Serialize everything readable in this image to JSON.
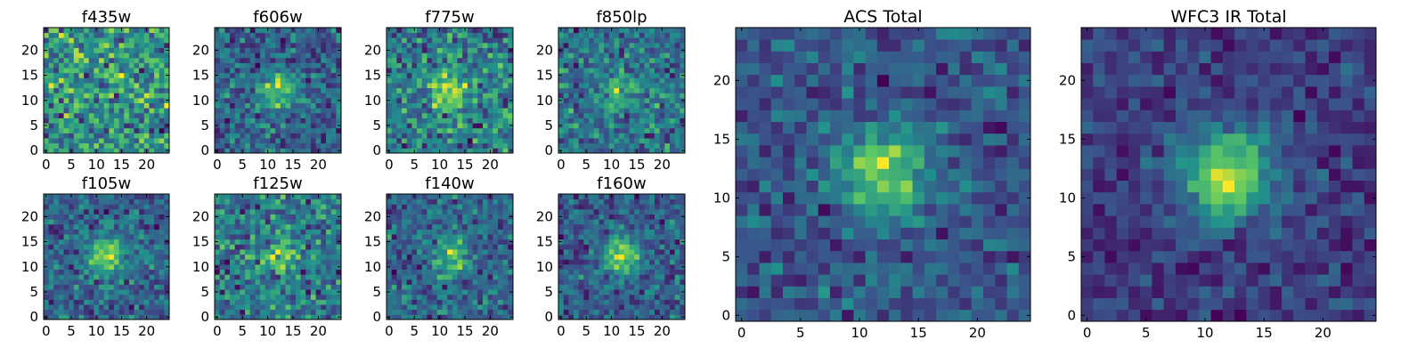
{
  "chart_data": [
    {
      "type": "heatmap",
      "title": "f435w",
      "x_ticks": [
        0,
        5,
        10,
        15,
        20
      ],
      "y_ticks": [
        0,
        5,
        10,
        15,
        20
      ],
      "xlim": [
        0,
        25
      ],
      "ylim": [
        0,
        25
      ],
      "colormap": "viridis",
      "grid": 25,
      "source": {
        "peak": 0.15,
        "noise": 1.0,
        "seed": 11
      }
    },
    {
      "type": "heatmap",
      "title": "f606w",
      "x_ticks": [
        0,
        5,
        10,
        15,
        20
      ],
      "y_ticks": [
        0,
        5,
        10,
        15,
        20
      ],
      "xlim": [
        0,
        25
      ],
      "ylim": [
        0,
        25
      ],
      "colormap": "viridis",
      "grid": 25,
      "source": {
        "peak": 1.3,
        "noise": 0.8,
        "seed": 23
      }
    },
    {
      "type": "heatmap",
      "title": "f775w",
      "x_ticks": [
        0,
        5,
        10,
        15,
        20
      ],
      "y_ticks": [
        0,
        5,
        10,
        15,
        20
      ],
      "xlim": [
        0,
        25
      ],
      "ylim": [
        0,
        25
      ],
      "colormap": "viridis",
      "grid": 25,
      "source": {
        "peak": 1.2,
        "noise": 0.85,
        "seed": 37
      }
    },
    {
      "type": "heatmap",
      "title": "f850lp",
      "x_ticks": [
        0,
        5,
        10,
        15,
        20
      ],
      "y_ticks": [
        0,
        5,
        10,
        15,
        20
      ],
      "xlim": [
        0,
        25
      ],
      "ylim": [
        0,
        25
      ],
      "colormap": "viridis",
      "grid": 25,
      "source": {
        "peak": 0.9,
        "noise": 0.9,
        "seed": 41
      }
    },
    {
      "type": "heatmap",
      "title": "f105w",
      "x_ticks": [
        0,
        5,
        10,
        15,
        20
      ],
      "y_ticks": [
        0,
        5,
        10,
        15,
        20
      ],
      "xlim": [
        0,
        25
      ],
      "ylim": [
        0,
        25
      ],
      "colormap": "viridis",
      "grid": 25,
      "source": {
        "peak": 1.2,
        "noise": 0.55,
        "seed": 53
      }
    },
    {
      "type": "heatmap",
      "title": "f125w",
      "x_ticks": [
        0,
        5,
        10,
        15,
        20
      ],
      "y_ticks": [
        0,
        5,
        10,
        15,
        20
      ],
      "xlim": [
        0,
        25
      ],
      "ylim": [
        0,
        25
      ],
      "colormap": "viridis",
      "grid": 25,
      "source": {
        "peak": 0.6,
        "noise": 0.6,
        "seed": 67
      }
    },
    {
      "type": "heatmap",
      "title": "f140w",
      "x_ticks": [
        0,
        5,
        10,
        15,
        20
      ],
      "y_ticks": [
        0,
        5,
        10,
        15,
        20
      ],
      "xlim": [
        0,
        25
      ],
      "ylim": [
        0,
        25
      ],
      "colormap": "viridis",
      "grid": 25,
      "source": {
        "peak": 1.0,
        "noise": 0.6,
        "seed": 71
      }
    },
    {
      "type": "heatmap",
      "title": "f160w",
      "x_ticks": [
        0,
        5,
        10,
        15,
        20
      ],
      "y_ticks": [
        0,
        5,
        10,
        15,
        20
      ],
      "xlim": [
        0,
        25
      ],
      "ylim": [
        0,
        25
      ],
      "colormap": "viridis",
      "grid": 25,
      "source": {
        "peak": 1.3,
        "noise": 0.5,
        "seed": 83
      }
    },
    {
      "type": "heatmap",
      "title": "ACS Total",
      "x_ticks": [
        0,
        5,
        10,
        15,
        20
      ],
      "y_ticks": [
        0,
        5,
        10,
        15,
        20
      ],
      "xlim": [
        0,
        25
      ],
      "ylim": [
        0,
        25
      ],
      "colormap": "viridis",
      "grid": 25,
      "source": {
        "peak": 1.8,
        "noise": 0.65,
        "seed": 97
      }
    },
    {
      "type": "heatmap",
      "title": "WFC3 IR Total",
      "x_ticks": [
        0,
        5,
        10,
        15,
        20
      ],
      "y_ticks": [
        0,
        5,
        10,
        15,
        20
      ],
      "xlim": [
        0,
        25
      ],
      "ylim": [
        0,
        25
      ],
      "colormap": "viridis",
      "grid": 25,
      "source": {
        "peak": 1.9,
        "noise": 0.45,
        "seed": 101
      }
    }
  ]
}
